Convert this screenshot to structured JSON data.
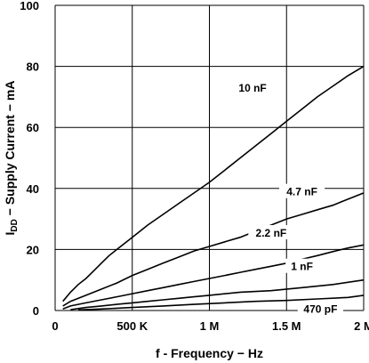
{
  "chart_data": {
    "type": "line",
    "xlabel": "f - Frequency − Hz",
    "ylabel": "I_DD − Supply Current − mA",
    "ylabel_prefix": "I",
    "ylabel_sub": "DD",
    "ylabel_rest": " − Supply Current − mA",
    "xlim": [
      0,
      2000000
    ],
    "ylim": [
      0,
      100
    ],
    "grid": true,
    "x_ticks": [
      {
        "value": 0,
        "label": "0"
      },
      {
        "value": 500000,
        "label": "500 K"
      },
      {
        "value": 1000000,
        "label": "1 M"
      },
      {
        "value": 1500000,
        "label": "1.5 M"
      },
      {
        "value": 2000000,
        "label": "2 M"
      }
    ],
    "y_ticks": [
      {
        "value": 0,
        "label": "0"
      },
      {
        "value": 20,
        "label": "20"
      },
      {
        "value": 40,
        "label": "40"
      },
      {
        "value": 60,
        "label": "60"
      },
      {
        "value": 80,
        "label": "80"
      },
      {
        "value": 100,
        "label": "100"
      }
    ],
    "series": [
      {
        "name": "10 nF",
        "label_at": [
          1280000,
          72
        ],
        "points": [
          [
            50000,
            3
          ],
          [
            100000,
            6
          ],
          [
            150000,
            8.5
          ],
          [
            200000,
            10.5
          ],
          [
            250000,
            13
          ],
          [
            300000,
            15.5
          ],
          [
            350000,
            18
          ],
          [
            400000,
            20
          ],
          [
            500000,
            24
          ],
          [
            600000,
            28
          ],
          [
            700000,
            31.5
          ],
          [
            800000,
            35
          ],
          [
            900000,
            38.5
          ],
          [
            1000000,
            42
          ],
          [
            1100000,
            46
          ],
          [
            1200000,
            50
          ],
          [
            1300000,
            54
          ],
          [
            1400000,
            58
          ],
          [
            1500000,
            62
          ],
          [
            1600000,
            66
          ],
          [
            1700000,
            70
          ],
          [
            1800000,
            73.5
          ],
          [
            1900000,
            77
          ],
          [
            2000000,
            80
          ]
        ]
      },
      {
        "name": "4.7 nF",
        "label_at": [
          1600000,
          38
        ],
        "points": [
          [
            50000,
            1.5
          ],
          [
            100000,
            3
          ],
          [
            200000,
            5
          ],
          [
            300000,
            7
          ],
          [
            400000,
            9
          ],
          [
            500000,
            11.5
          ],
          [
            600000,
            13.5
          ],
          [
            700000,
            15.5
          ],
          [
            800000,
            17.5
          ],
          [
            900000,
            19.5
          ],
          [
            1000000,
            21
          ],
          [
            1100000,
            22.5
          ],
          [
            1200000,
            24
          ],
          [
            1300000,
            26
          ],
          [
            1400000,
            28
          ],
          [
            1500000,
            30
          ],
          [
            1600000,
            31.5
          ],
          [
            1700000,
            33
          ],
          [
            1800000,
            34.5
          ],
          [
            1900000,
            36.5
          ],
          [
            2000000,
            38.5
          ]
        ]
      },
      {
        "name": "2.2 nF",
        "label_at": [
          1400000,
          24.5
        ],
        "points": [
          [
            50000,
            0.5
          ],
          [
            100000,
            1.5
          ],
          [
            200000,
            2.5
          ],
          [
            300000,
            3.5
          ],
          [
            400000,
            4.5
          ],
          [
            500000,
            5.5
          ],
          [
            600000,
            6.5
          ],
          [
            700000,
            7.5
          ],
          [
            800000,
            8.5
          ],
          [
            900000,
            9.5
          ],
          [
            1000000,
            10.5
          ],
          [
            1100000,
            11.5
          ],
          [
            1200000,
            12.5
          ],
          [
            1300000,
            13.5
          ],
          [
            1400000,
            14.5
          ],
          [
            1500000,
            15.5
          ],
          [
            1600000,
            16.8
          ],
          [
            1700000,
            18
          ],
          [
            1800000,
            19.3
          ],
          [
            1900000,
            20.5
          ],
          [
            2000000,
            21.5
          ]
        ]
      },
      {
        "name": "1 nF",
        "label_at": [
          1600000,
          13.5
        ],
        "points": [
          [
            100000,
            0.3
          ],
          [
            200000,
            1
          ],
          [
            300000,
            1.5
          ],
          [
            400000,
            2
          ],
          [
            500000,
            2.5
          ],
          [
            600000,
            3
          ],
          [
            700000,
            3.5
          ],
          [
            800000,
            4
          ],
          [
            900000,
            4.5
          ],
          [
            1000000,
            5
          ],
          [
            1200000,
            6
          ],
          [
            1400000,
            6.5
          ],
          [
            1600000,
            7.5
          ],
          [
            1800000,
            8.5
          ],
          [
            2000000,
            10
          ]
        ]
      },
      {
        "name": "470 pF",
        "label_at": [
          1720000,
          -0.5
        ],
        "points": [
          [
            150000,
            0.2
          ],
          [
            300000,
            0.5
          ],
          [
            500000,
            1
          ],
          [
            700000,
            1.5
          ],
          [
            900000,
            2
          ],
          [
            1100000,
            2.5
          ],
          [
            1300000,
            3
          ],
          [
            1500000,
            3.3
          ],
          [
            1700000,
            3.8
          ],
          [
            1900000,
            4.3
          ],
          [
            2000000,
            5
          ]
        ]
      }
    ]
  }
}
